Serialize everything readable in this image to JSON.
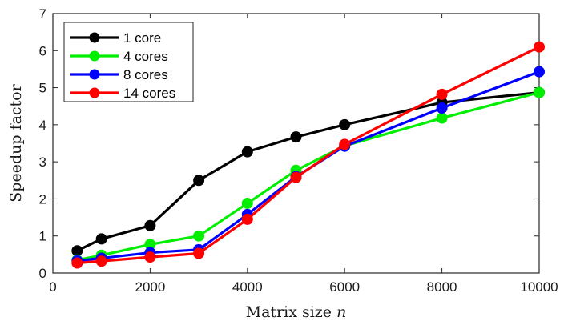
{
  "chart_data": {
    "type": "line",
    "title": "",
    "xlabel": "Matrix size ",
    "xlabel_var": "n",
    "ylabel": "Speedup factor",
    "xlim": [
      0,
      10000
    ],
    "ylim": [
      0,
      7
    ],
    "xticks": [
      0,
      2000,
      4000,
      6000,
      8000,
      10000
    ],
    "yticks": [
      0,
      1,
      2,
      3,
      4,
      5,
      6,
      7
    ],
    "grid": false,
    "legend_position": "top-left",
    "x": [
      500,
      1000,
      2000,
      3000,
      4000,
      5000,
      6000,
      8000,
      10000
    ],
    "series": [
      {
        "name": "1 core",
        "color": "#000000",
        "values": [
          0.6,
          0.92,
          1.28,
          2.5,
          3.27,
          3.67,
          4.0,
          4.6,
          4.87
        ]
      },
      {
        "name": "4 cores",
        "color": "#00ee00",
        "values": [
          0.35,
          0.48,
          0.77,
          1.0,
          1.88,
          2.77,
          3.43,
          4.18,
          4.87
        ]
      },
      {
        "name": "8 cores",
        "color": "#0000ff",
        "values": [
          0.33,
          0.4,
          0.55,
          0.63,
          1.58,
          2.6,
          3.42,
          4.45,
          5.43
        ]
      },
      {
        "name": "14 cores",
        "color": "#ff0000",
        "values": [
          0.27,
          0.32,
          0.43,
          0.53,
          1.45,
          2.58,
          3.47,
          4.82,
          6.1
        ]
      }
    ]
  }
}
